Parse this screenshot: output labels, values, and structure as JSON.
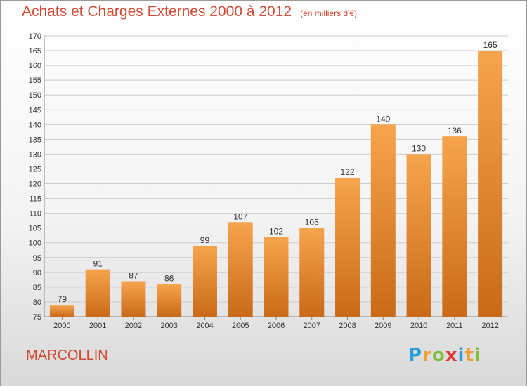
{
  "title": "Achats et Charges Externes 2000 à 2012",
  "subtitle": "(en milliers d'€)",
  "commune": "MARCOLLIN",
  "logo": {
    "text": "Proxiti",
    "letters": [
      {
        "ch": "P",
        "color": "#2a9fd8"
      },
      {
        "ch": "r",
        "color": "#f0a030"
      },
      {
        "ch": "o",
        "color": "#7fbf3f"
      },
      {
        "ch": "x",
        "color": "#e03a3a"
      },
      {
        "ch": "i",
        "color": "#2a9fd8"
      },
      {
        "ch": "t",
        "color": "#f0a030"
      },
      {
        "ch": "i",
        "color": "#7fbf3f"
      }
    ]
  },
  "colors": {
    "title": "#d24a33",
    "bar_light": "#f7a44e",
    "bar_dark": "#c96a18",
    "grid": "#cccccc",
    "text": "#333333"
  },
  "chart_data": {
    "type": "bar",
    "categories": [
      "2000",
      "2001",
      "2002",
      "2003",
      "2004",
      "2005",
      "2006",
      "2007",
      "2008",
      "2009",
      "2010",
      "2011",
      "2012"
    ],
    "values": [
      79,
      91,
      87,
      86,
      99,
      107,
      102,
      105,
      122,
      140,
      130,
      136,
      165
    ],
    "ylim": [
      75,
      170
    ],
    "yticks": [
      75,
      80,
      85,
      90,
      95,
      100,
      105,
      110,
      115,
      120,
      125,
      130,
      135,
      140,
      145,
      150,
      155,
      160,
      165,
      170
    ],
    "grid": true,
    "data_labels": true
  }
}
